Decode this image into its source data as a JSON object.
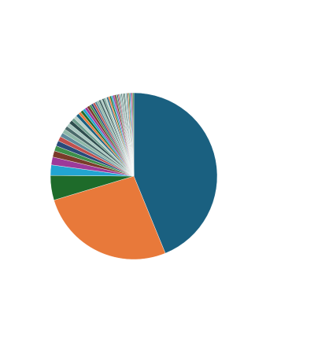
{
  "chart_data": {
    "type": "pie",
    "values": [
      43,
      26,
      4.7,
      2,
      1.5,
      1.2,
      1,
      1,
      0.9,
      0.8,
      0.8,
      0.7,
      0.7,
      0.7,
      0.6,
      0.6,
      0.6,
      0.5,
      0.5,
      0.5,
      0.5,
      0.5,
      0.4,
      0.4,
      0.4,
      0.4,
      0.4,
      0.4,
      0.3,
      0.3,
      0.3,
      0.3,
      0.3,
      0.3,
      0.3,
      0.3,
      0.3,
      0.3,
      0.2,
      0.2,
      0.2,
      0.2,
      0.2,
      0.2,
      0.2,
      0.2,
      0.2,
      0.2,
      0.2,
      0.2,
      0.2,
      0.2,
      0.2,
      0.2,
      0.2
    ],
    "colors": [
      "#1a6080",
      "#e8793a",
      "#1e6b2a",
      "#22a5d1",
      "#9c3a9a",
      "#7a3b2a",
      "#3d8f4a",
      "#2a4a7a",
      "#c0504d",
      "#5e8a9a",
      "#8fb8a8",
      "#4a6a6a",
      "#a8c8c0",
      "#2e4e4e",
      "#6e9e8e",
      "#b8d0c8"
    ]
  }
}
